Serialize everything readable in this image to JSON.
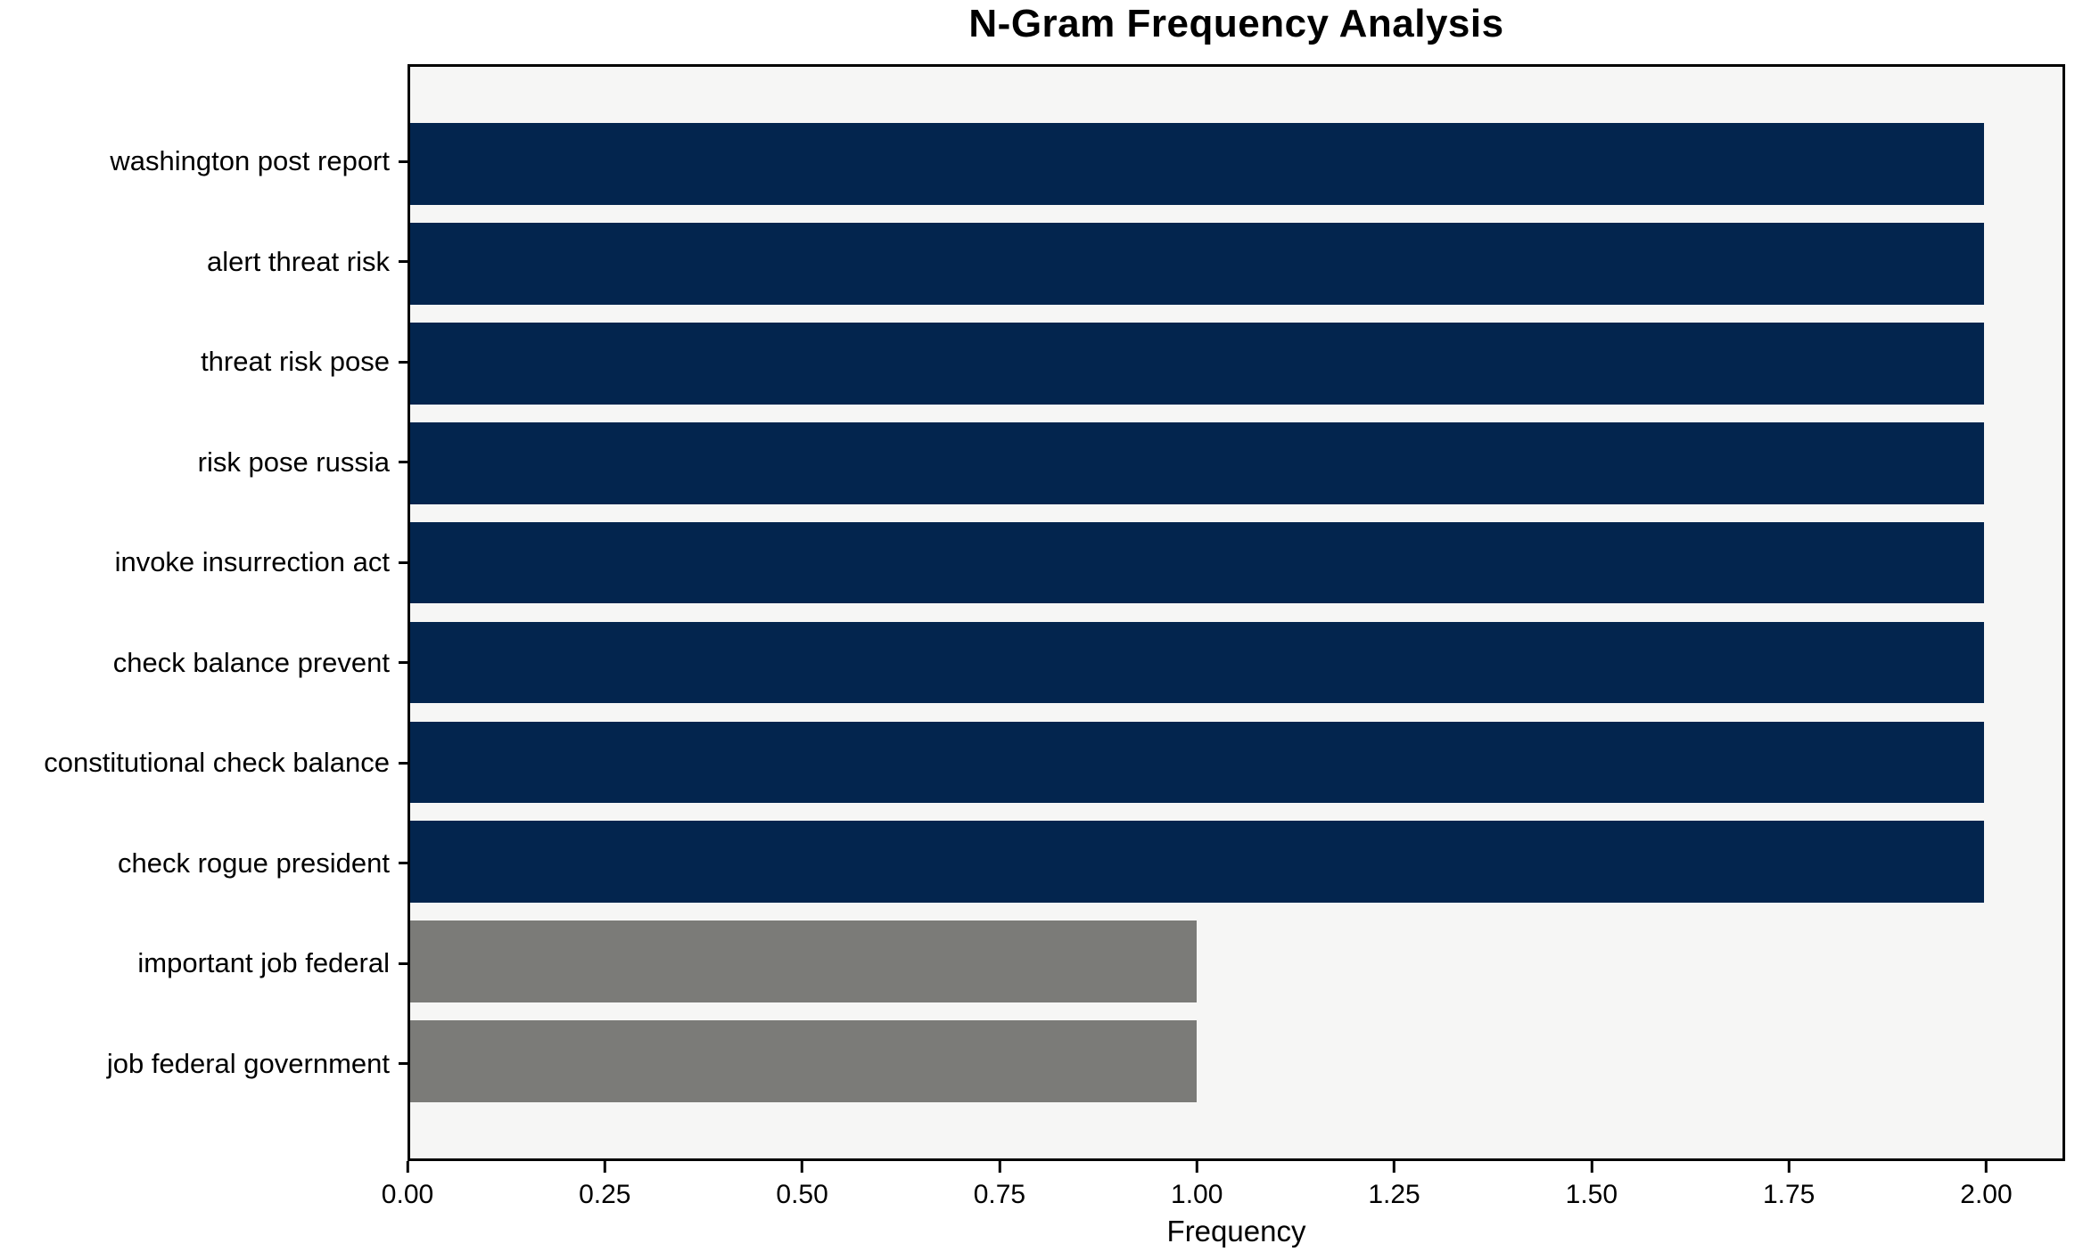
{
  "figure": {
    "title": "N-Gram Frequency Analysis",
    "xlabel": "Frequency"
  },
  "chart_data": {
    "type": "bar",
    "orientation": "horizontal",
    "title": "N-Gram Frequency Analysis",
    "xlabel": "Frequency",
    "ylabel": "",
    "categories": [
      "washington post report",
      "alert threat risk",
      "threat risk pose",
      "risk pose russia",
      "invoke insurrection act",
      "check balance prevent",
      "constitutional check balance",
      "check rogue president",
      "important job federal",
      "job federal government"
    ],
    "values": [
      2,
      2,
      2,
      2,
      2,
      2,
      2,
      2,
      1,
      1
    ],
    "bar_colors": [
      "#03254e",
      "#03254e",
      "#03254e",
      "#03254e",
      "#03254e",
      "#03254e",
      "#03254e",
      "#03254e",
      "#7b7b78",
      "#7b7b78"
    ],
    "xlim": [
      0,
      2.1
    ],
    "x_tick_values": [
      0,
      0.25,
      0.5,
      0.75,
      1.0,
      1.25,
      1.5,
      1.75,
      2.0
    ],
    "x_tick_labels": [
      "0.00",
      "0.25",
      "0.50",
      "0.75",
      "1.00",
      "1.25",
      "1.50",
      "1.75",
      "2.00"
    ],
    "grid": false,
    "legend": false,
    "colors": {
      "bar_navy": "#03254e",
      "bar_gray": "#7b7b78",
      "plot_background": "#f6f6f5",
      "figure_background": "#ffffff",
      "spine": "#000000",
      "text": "#000000"
    }
  }
}
